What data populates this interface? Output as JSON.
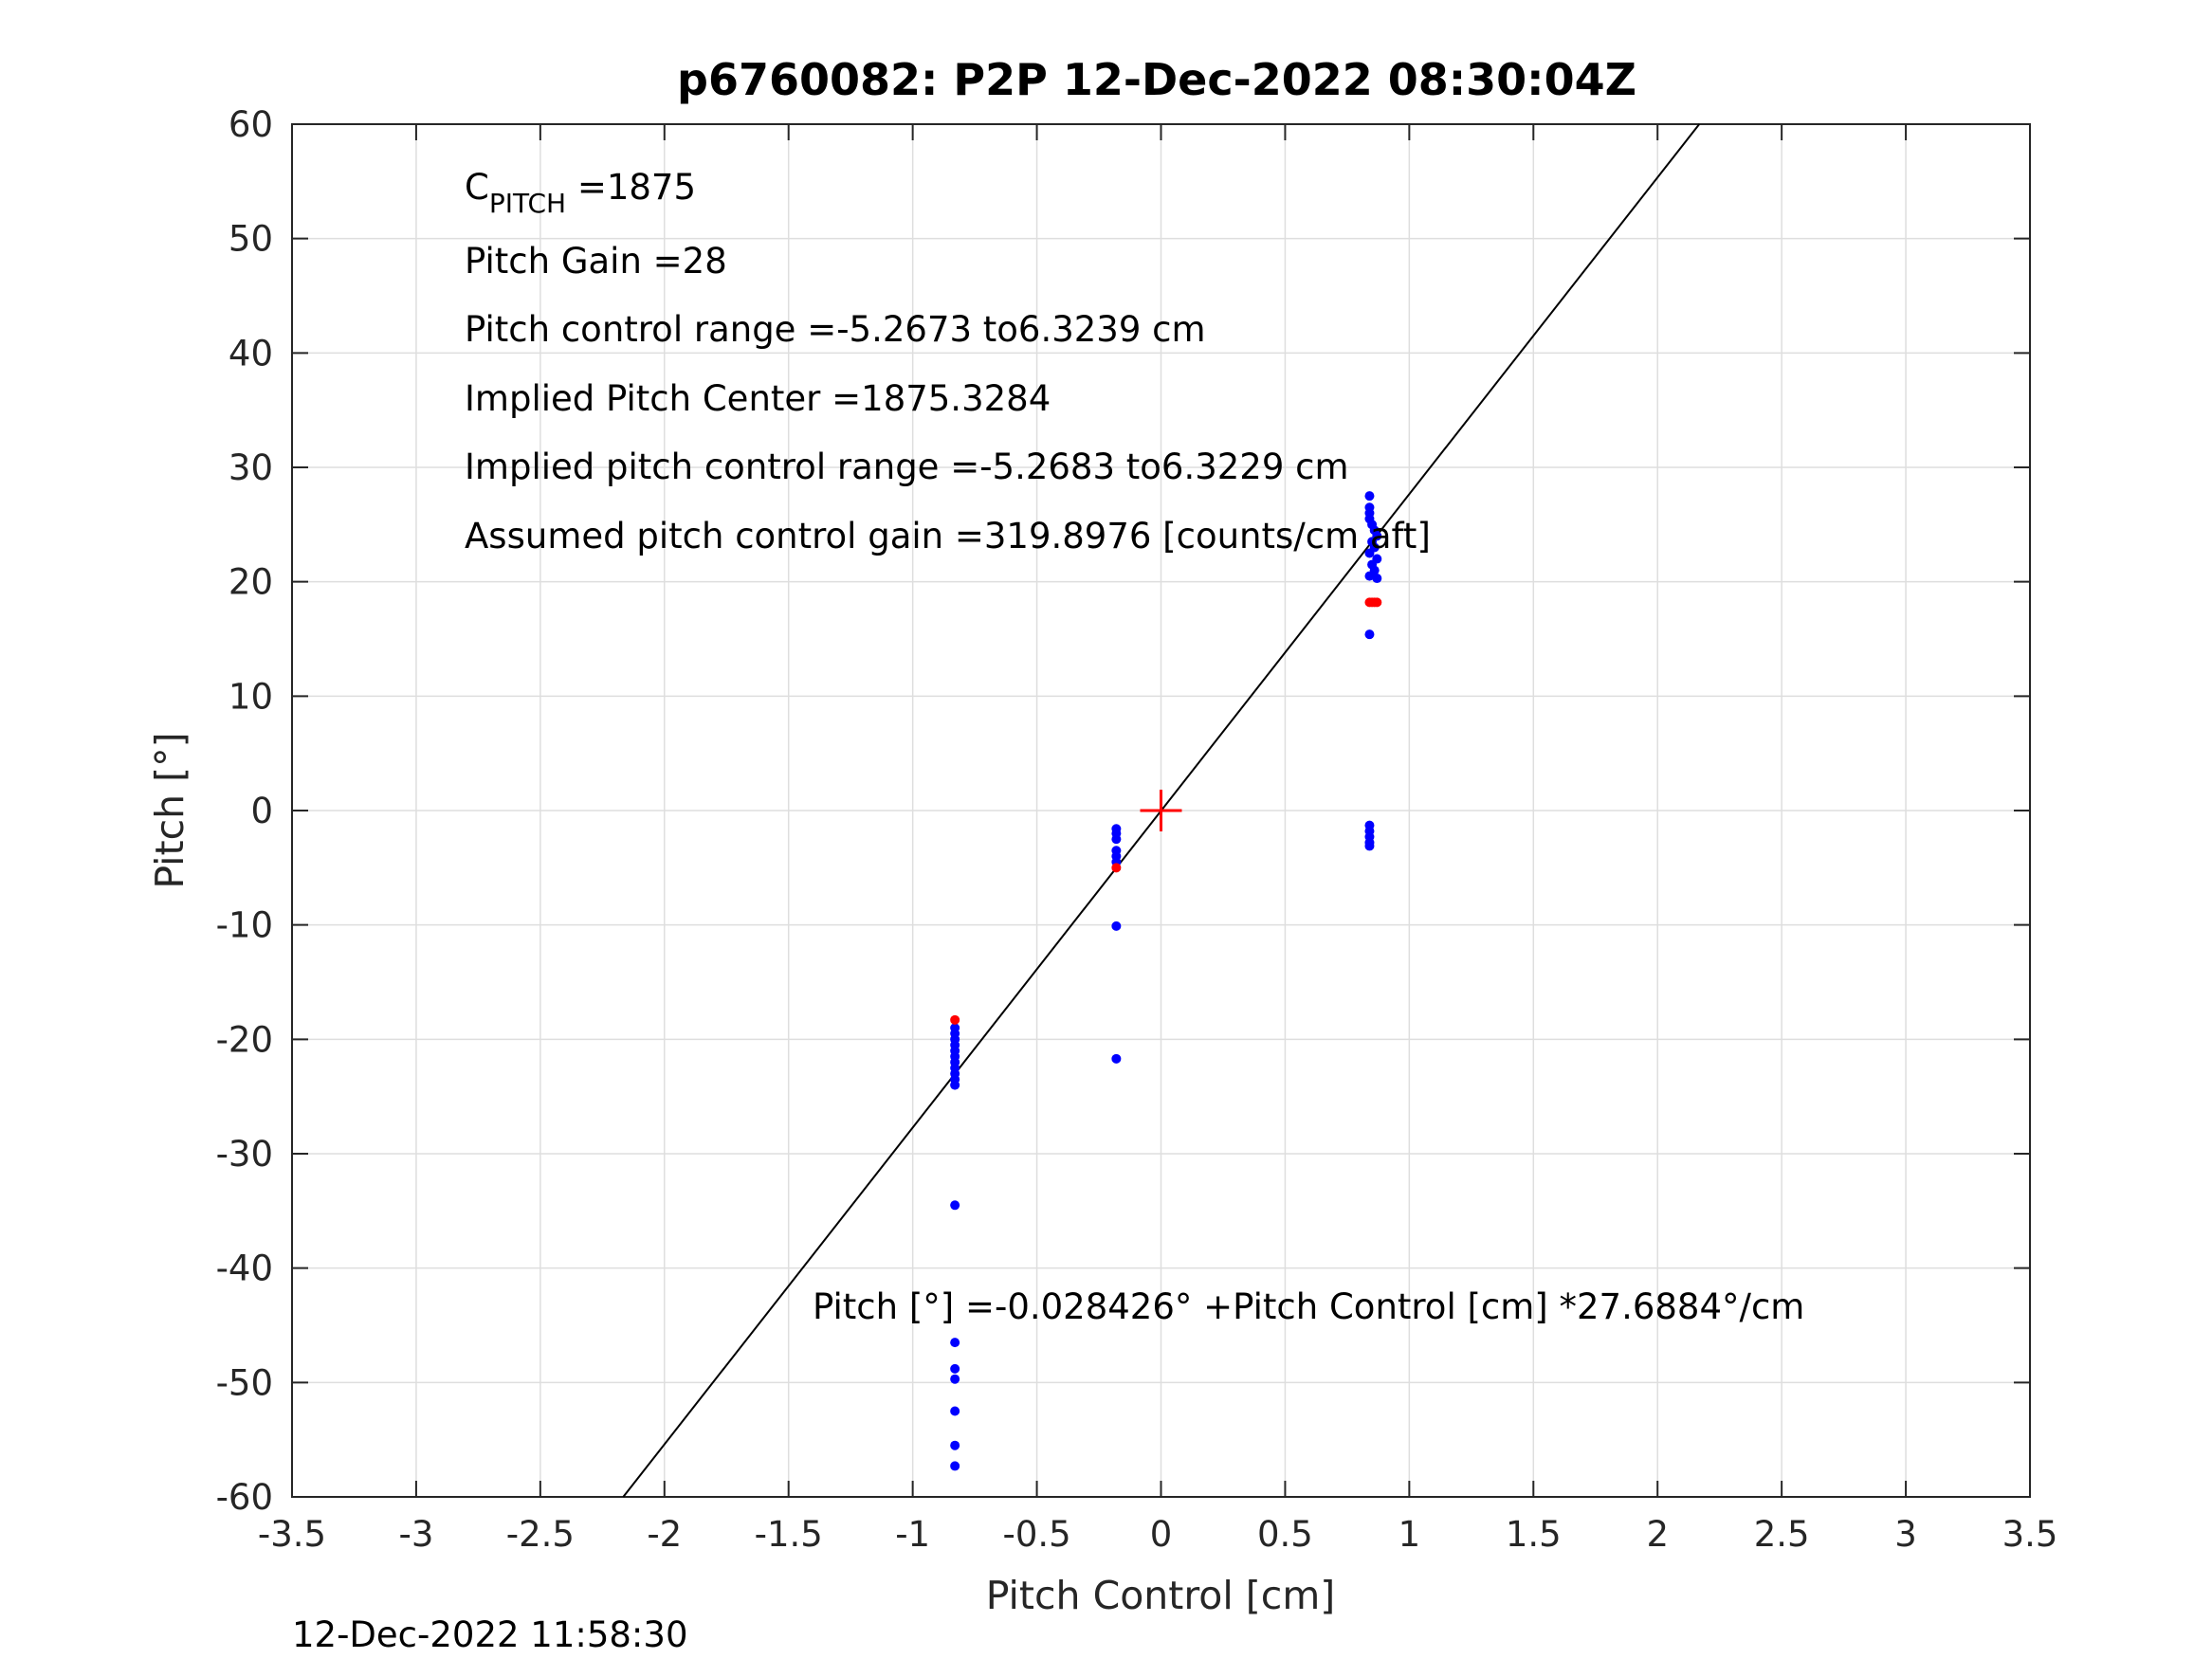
{
  "title": "p6760082: P2P 12-Dec-2022 08:30:04Z",
  "footer_timestamp": "12-Dec-2022 11:58:30",
  "annotations": {
    "cpitch_prefix": "C",
    "cpitch_sub": "PITCH",
    "cpitch_value": " =1875",
    "pitch_gain": "Pitch Gain =28",
    "control_range": "Pitch control range =-5.2673 to6.3239 cm",
    "implied_center": "Implied Pitch Center =1875.3284",
    "implied_range": "Implied pitch control range =-5.2683 to6.3229 cm",
    "assumed_gain": "Assumed pitch control gain =319.8976 [counts/cm aft]",
    "fit_equation": "Pitch [°] =-0.028426° +Pitch Control [cm] *27.6884°/cm"
  },
  "colors": {
    "series_main": "#0000ff",
    "series_flagged": "#ff0000",
    "fit_line": "#000000",
    "center_marker": "#ff0000",
    "grid": "#dedede",
    "axis": "#262626"
  },
  "chart_data": {
    "type": "scatter",
    "title": "p6760082: P2P 12-Dec-2022 08:30:04Z",
    "xlabel": "Pitch Control [cm]",
    "ylabel": "Pitch [°]",
    "xlim": [
      -3.5,
      3.5
    ],
    "ylim": [
      -60,
      60
    ],
    "xticks": [
      -3.5,
      -3,
      -2.5,
      -2,
      -1.5,
      -1,
      -0.5,
      0,
      0.5,
      1,
      1.5,
      2,
      2.5,
      3,
      3.5
    ],
    "xtick_labels": [
      "-3.5",
      "-3",
      "-2.5",
      "-2",
      "-1.5",
      "-1",
      "-0.5",
      "0",
      "0.5",
      "1",
      "1.5",
      "2",
      "2.5",
      "3",
      "3.5"
    ],
    "yticks": [
      -60,
      -50,
      -40,
      -30,
      -20,
      -10,
      0,
      10,
      20,
      30,
      40,
      50,
      60
    ],
    "ytick_labels": [
      "-60",
      "-50",
      "-40",
      "-30",
      "-20",
      "-10",
      "0",
      "10",
      "20",
      "30",
      "40",
      "50",
      "60"
    ],
    "grid": true,
    "series": [
      {
        "color": "blue",
        "points": [
          [
            -0.83,
            -19.0
          ],
          [
            -0.83,
            -19.5
          ],
          [
            -0.83,
            -20.0
          ],
          [
            -0.83,
            -20.5
          ],
          [
            -0.83,
            -21.0
          ],
          [
            -0.83,
            -21.5
          ],
          [
            -0.83,
            -22.0
          ],
          [
            -0.83,
            -22.5
          ],
          [
            -0.83,
            -23.0
          ],
          [
            -0.83,
            -23.5
          ],
          [
            -0.83,
            -24.0
          ],
          [
            -0.83,
            -34.5
          ],
          [
            -0.83,
            -46.5
          ],
          [
            -0.83,
            -48.8
          ],
          [
            -0.83,
            -49.7
          ],
          [
            -0.83,
            -52.5
          ],
          [
            -0.83,
            -55.5
          ],
          [
            -0.83,
            -57.3
          ],
          [
            -0.18,
            -1.6
          ],
          [
            -0.18,
            -2.0
          ],
          [
            -0.18,
            -2.5
          ],
          [
            -0.18,
            -3.5
          ],
          [
            -0.18,
            -4.0
          ],
          [
            -0.18,
            -4.5
          ],
          [
            -0.18,
            -10.1
          ],
          [
            -0.18,
            -21.7
          ],
          [
            0.84,
            27.5
          ],
          [
            0.84,
            26.5
          ],
          [
            0.84,
            26.0
          ],
          [
            0.84,
            25.5
          ],
          [
            0.85,
            25.0
          ],
          [
            0.86,
            24.5
          ],
          [
            0.87,
            24.0
          ],
          [
            0.85,
            23.5
          ],
          [
            0.86,
            23.0
          ],
          [
            0.84,
            22.5
          ],
          [
            0.87,
            22.0
          ],
          [
            0.85,
            21.5
          ],
          [
            0.86,
            21.0
          ],
          [
            0.84,
            20.5
          ],
          [
            0.87,
            20.3
          ],
          [
            0.84,
            15.4
          ],
          [
            0.84,
            -1.3
          ],
          [
            0.84,
            -1.8
          ],
          [
            0.84,
            -2.3
          ],
          [
            0.84,
            -2.8
          ],
          [
            0.84,
            -3.1
          ]
        ]
      },
      {
        "color": "red",
        "points": [
          [
            -0.83,
            -18.3
          ],
          [
            -0.18,
            -5.0
          ],
          [
            0.84,
            18.2
          ],
          [
            0.85,
            18.2
          ],
          [
            0.86,
            18.2
          ],
          [
            0.87,
            18.2
          ]
        ]
      }
    ],
    "fit_line": {
      "intercept": -0.028426,
      "slope": 27.6884
    },
    "center_marker": [
      0,
      0
    ]
  }
}
